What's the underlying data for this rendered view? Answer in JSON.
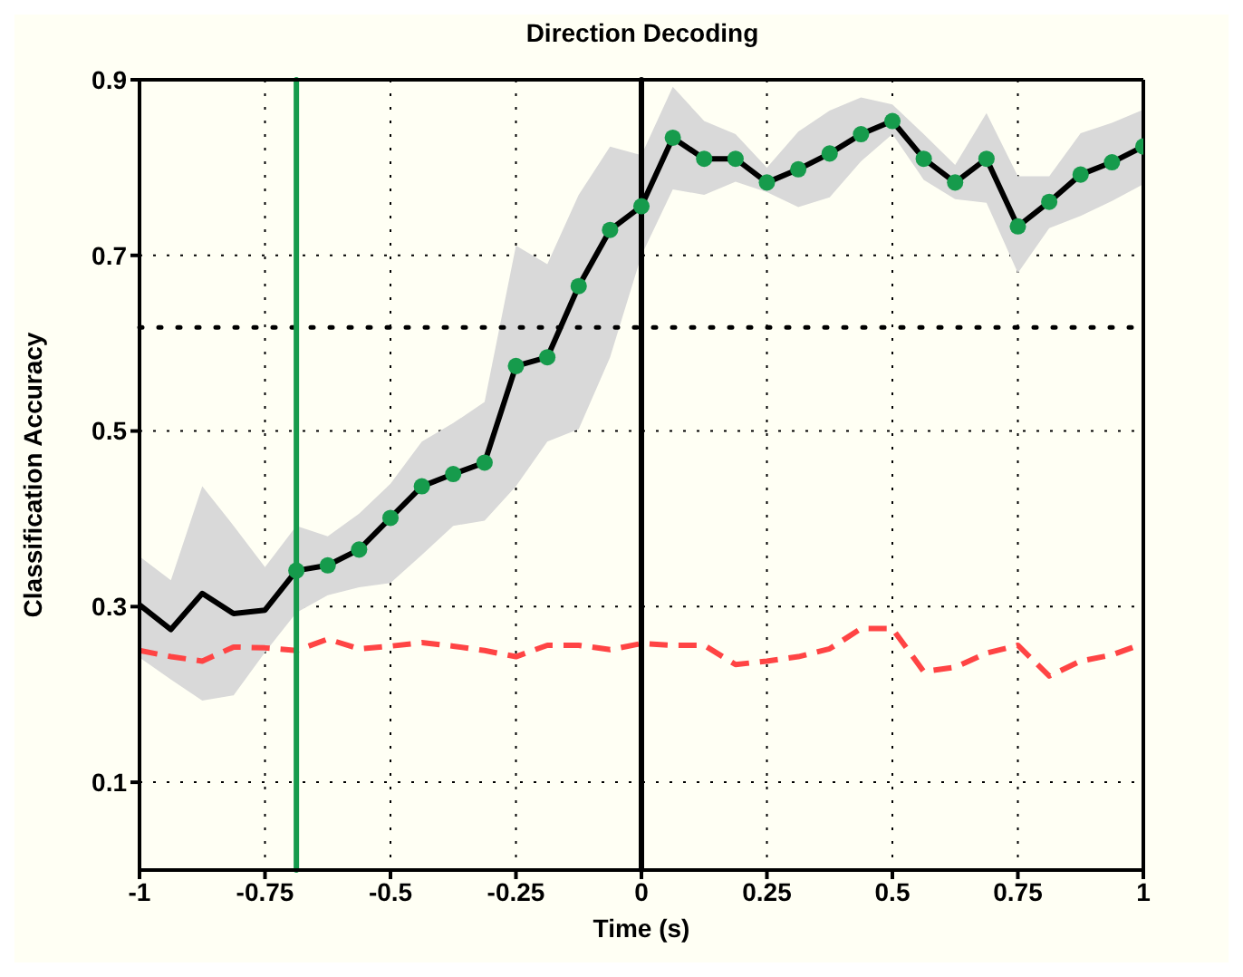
{
  "chart_data": {
    "type": "line",
    "title": "Direction Decoding",
    "xlabel": "Time (s)",
    "ylabel": "Classification Accuracy",
    "x": [
      -1,
      -0.9375,
      -0.875,
      -0.8125,
      -0.75,
      -0.6875,
      -0.625,
      -0.5625,
      -0.5,
      -0.4375,
      -0.375,
      -0.3125,
      -0.25,
      -0.1875,
      -0.125,
      -0.0625,
      0,
      0.0625,
      0.125,
      0.1875,
      0.25,
      0.3125,
      0.375,
      0.4375,
      0.5,
      0.5625,
      0.625,
      0.6875,
      0.75,
      0.8125,
      0.875,
      0.9375,
      1
    ],
    "series": [
      {
        "color": "#000000",
        "marker": "none",
        "line_style": "solid",
        "values": [
          0.302,
          0.274,
          0.315,
          0.292,
          0.296,
          0.341,
          0.347,
          0.365,
          0.401,
          0.437,
          0.451,
          0.464,
          0.574,
          0.584,
          0.665,
          0.729,
          0.756,
          0.834,
          0.81,
          0.81,
          0.783,
          0.798,
          0.816,
          0.838,
          0.853,
          0.81,
          0.783,
          0.81,
          0.733,
          0.761,
          0.792,
          0.806,
          0.824
        ],
        "lower": [
          0.242,
          0.217,
          0.193,
          0.199,
          0.248,
          0.293,
          0.313,
          0.322,
          0.327,
          0.359,
          0.392,
          0.398,
          0.437,
          0.488,
          0.502,
          0.584,
          0.7,
          0.775,
          0.769,
          0.784,
          0.772,
          0.755,
          0.766,
          0.807,
          0.838,
          0.786,
          0.764,
          0.76,
          0.68,
          0.731,
          0.745,
          0.762,
          0.781
        ],
        "upper": [
          0.357,
          0.33,
          0.437,
          0.392,
          0.345,
          0.392,
          0.38,
          0.406,
          0.44,
          0.488,
          0.509,
          0.533,
          0.711,
          0.69,
          0.769,
          0.824,
          0.814,
          0.892,
          0.853,
          0.838,
          0.8,
          0.841,
          0.865,
          0.88,
          0.872,
          0.838,
          0.803,
          0.862,
          0.79,
          0.79,
          0.839,
          0.851,
          0.866
        ]
      },
      {
        "type": "scatter",
        "color": "#169b4c",
        "marker": "circle",
        "values": [
          null,
          null,
          null,
          null,
          null,
          0.341,
          0.347,
          0.365,
          0.401,
          0.437,
          0.451,
          0.464,
          0.574,
          0.584,
          0.665,
          0.729,
          0.756,
          0.834,
          0.81,
          0.81,
          0.783,
          0.798,
          0.816,
          0.838,
          0.853,
          0.81,
          0.783,
          0.81,
          0.733,
          0.761,
          0.792,
          0.806,
          0.824
        ]
      },
      {
        "color": "#ff4444",
        "marker": "none",
        "line_style": "dashed",
        "values": [
          0.25,
          0.243,
          0.238,
          0.254,
          0.253,
          0.25,
          0.263,
          0.252,
          0.255,
          0.259,
          0.255,
          0.25,
          0.243,
          0.256,
          0.256,
          0.251,
          0.258,
          0.256,
          0.256,
          0.234,
          0.238,
          0.243,
          0.252,
          0.275,
          0.275,
          0.226,
          0.231,
          0.247,
          0.256,
          0.221,
          0.238,
          0.245,
          0.258
        ]
      }
    ],
    "ref_lines": [
      {
        "axis": "y",
        "value": 0.618,
        "color": "#000000",
        "line_style": "dotted"
      },
      {
        "axis": "x",
        "value": 0,
        "color": "#000000",
        "line_style": "solid"
      },
      {
        "axis": "x",
        "value": -0.6875,
        "color": "#169b4c",
        "line_style": "solid"
      }
    ],
    "xlim": [
      -1,
      1
    ],
    "xticks": [
      -1,
      -0.75,
      -0.5,
      -0.25,
      0,
      0.25,
      0.5,
      0.75,
      1
    ],
    "ylim": [
      0,
      0.9
    ],
    "yticks": [
      0.1,
      0.3,
      0.5,
      0.7,
      0.9
    ],
    "grid": true,
    "legend": false
  }
}
